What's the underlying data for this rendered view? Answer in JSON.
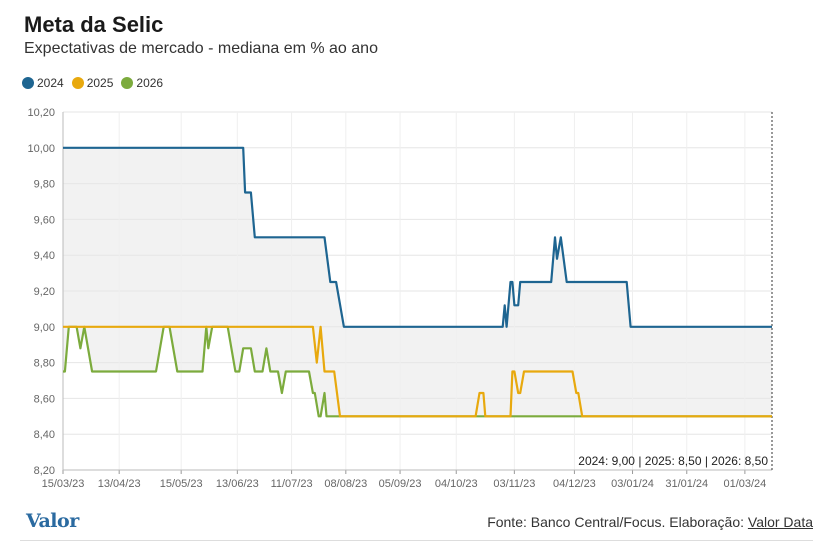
{
  "header": {
    "title": "Meta da Selic",
    "subtitle": "Expectativas de mercado - mediana em % ao ano"
  },
  "footer": {
    "logo_text": "Valor",
    "source_text": "Fonte: Banco Central/Focus. Elaboração:",
    "source_link": "Valor Data"
  },
  "chart_data": {
    "type": "line",
    "ylim": [
      8.2,
      10.2
    ],
    "yticks": [
      "8,20",
      "8,40",
      "8,60",
      "8,80",
      "9,00",
      "9,20",
      "9,40",
      "9,60",
      "9,80",
      "10,00",
      "10,20"
    ],
    "ytick_values": [
      8.2,
      8.4,
      8.6,
      8.8,
      9.0,
      9.2,
      9.4,
      9.6,
      9.8,
      10.0,
      10.2
    ],
    "x_range": [
      "2023-03-15",
      "2024-03-15"
    ],
    "xticks": [
      {
        "date": "2023-03-15",
        "label": "15/03/23"
      },
      {
        "date": "2023-04-13",
        "label": "13/04/23"
      },
      {
        "date": "2023-05-15",
        "label": "15/05/23"
      },
      {
        "date": "2023-06-13",
        "label": "13/06/23"
      },
      {
        "date": "2023-07-11",
        "label": "11/07/23"
      },
      {
        "date": "2023-08-08",
        "label": "08/08/23"
      },
      {
        "date": "2023-09-05",
        "label": "05/09/23"
      },
      {
        "date": "2023-10-04",
        "label": "04/10/23"
      },
      {
        "date": "2023-11-03",
        "label": "03/11/23"
      },
      {
        "date": "2023-12-04",
        "label": "04/12/23"
      },
      {
        "date": "2024-01-03",
        "label": "03/01/24"
      },
      {
        "date": "2024-01-31",
        "label": "31/01/24"
      },
      {
        "date": "2024-03-01",
        "label": "01/03/24"
      }
    ],
    "grid": true,
    "legend_position": "top-left",
    "annotation": "2024: 9,00 | 2025: 8,50 | 2026: 8,50",
    "series": [
      {
        "name": "2024",
        "color": "#1e6591",
        "points": [
          [
            "2023-03-15",
            10.0
          ],
          [
            "2023-06-16",
            10.0
          ],
          [
            "2023-06-17",
            9.75
          ],
          [
            "2023-06-20",
            9.75
          ],
          [
            "2023-06-22",
            9.5
          ],
          [
            "2023-07-28",
            9.5
          ],
          [
            "2023-07-31",
            9.25
          ],
          [
            "2023-08-03",
            9.25
          ],
          [
            "2023-08-07",
            9.0
          ],
          [
            "2023-10-28",
            9.0
          ],
          [
            "2023-10-29",
            9.12
          ],
          [
            "2023-10-30",
            9.0
          ],
          [
            "2023-11-01",
            9.25
          ],
          [
            "2023-11-02",
            9.25
          ],
          [
            "2023-11-03",
            9.12
          ],
          [
            "2023-11-05",
            9.12
          ],
          [
            "2023-11-06",
            9.25
          ],
          [
            "2023-11-22",
            9.25
          ],
          [
            "2023-11-24",
            9.5
          ],
          [
            "2023-11-25",
            9.38
          ],
          [
            "2023-11-27",
            9.5
          ],
          [
            "2023-11-30",
            9.25
          ],
          [
            "2023-12-31",
            9.25
          ],
          [
            "2024-01-02",
            9.0
          ],
          [
            "2024-03-15",
            9.0
          ]
        ]
      },
      {
        "name": "2025",
        "color": "#e8a90e",
        "points": [
          [
            "2023-03-15",
            9.0
          ],
          [
            "2023-07-22",
            9.0
          ],
          [
            "2023-07-24",
            8.8
          ],
          [
            "2023-07-26",
            9.0
          ],
          [
            "2023-07-28",
            8.75
          ],
          [
            "2023-08-02",
            8.75
          ],
          [
            "2023-08-05",
            8.5
          ],
          [
            "2023-10-14",
            8.5
          ],
          [
            "2023-10-16",
            8.63
          ],
          [
            "2023-10-18",
            8.63
          ],
          [
            "2023-10-19",
            8.5
          ],
          [
            "2023-11-01",
            8.5
          ],
          [
            "2023-11-02",
            8.75
          ],
          [
            "2023-11-03",
            8.75
          ],
          [
            "2023-11-05",
            8.63
          ],
          [
            "2023-11-06",
            8.63
          ],
          [
            "2023-11-08",
            8.75
          ],
          [
            "2023-12-03",
            8.75
          ],
          [
            "2023-12-05",
            8.63
          ],
          [
            "2023-12-06",
            8.63
          ],
          [
            "2023-12-08",
            8.5
          ],
          [
            "2024-03-15",
            8.5
          ]
        ]
      },
      {
        "name": "2026",
        "color": "#7cab3d",
        "points": [
          [
            "2023-03-15",
            8.75
          ],
          [
            "2023-03-16",
            8.75
          ],
          [
            "2023-03-18",
            9.0
          ],
          [
            "2023-03-22",
            9.0
          ],
          [
            "2023-03-24",
            8.88
          ],
          [
            "2023-03-26",
            9.0
          ],
          [
            "2023-03-30",
            8.75
          ],
          [
            "2023-05-02",
            8.75
          ],
          [
            "2023-05-06",
            9.0
          ],
          [
            "2023-05-09",
            9.0
          ],
          [
            "2023-05-13",
            8.75
          ],
          [
            "2023-05-26",
            8.75
          ],
          [
            "2023-05-28",
            9.0
          ],
          [
            "2023-05-29",
            8.88
          ],
          [
            "2023-05-31",
            9.0
          ],
          [
            "2023-06-08",
            9.0
          ],
          [
            "2023-06-12",
            8.75
          ],
          [
            "2023-06-14",
            8.75
          ],
          [
            "2023-06-16",
            8.88
          ],
          [
            "2023-06-20",
            8.88
          ],
          [
            "2023-06-22",
            8.75
          ],
          [
            "2023-06-26",
            8.75
          ],
          [
            "2023-06-28",
            8.88
          ],
          [
            "2023-06-30",
            8.75
          ],
          [
            "2023-07-04",
            8.75
          ],
          [
            "2023-07-06",
            8.63
          ],
          [
            "2023-07-08",
            8.75
          ],
          [
            "2023-07-20",
            8.75
          ],
          [
            "2023-07-22",
            8.63
          ],
          [
            "2023-07-23",
            8.63
          ],
          [
            "2023-07-25",
            8.5
          ],
          [
            "2023-07-26",
            8.5
          ],
          [
            "2023-07-28",
            8.63
          ],
          [
            "2023-07-29",
            8.5
          ],
          [
            "2024-03-15",
            8.5
          ]
        ]
      }
    ]
  }
}
